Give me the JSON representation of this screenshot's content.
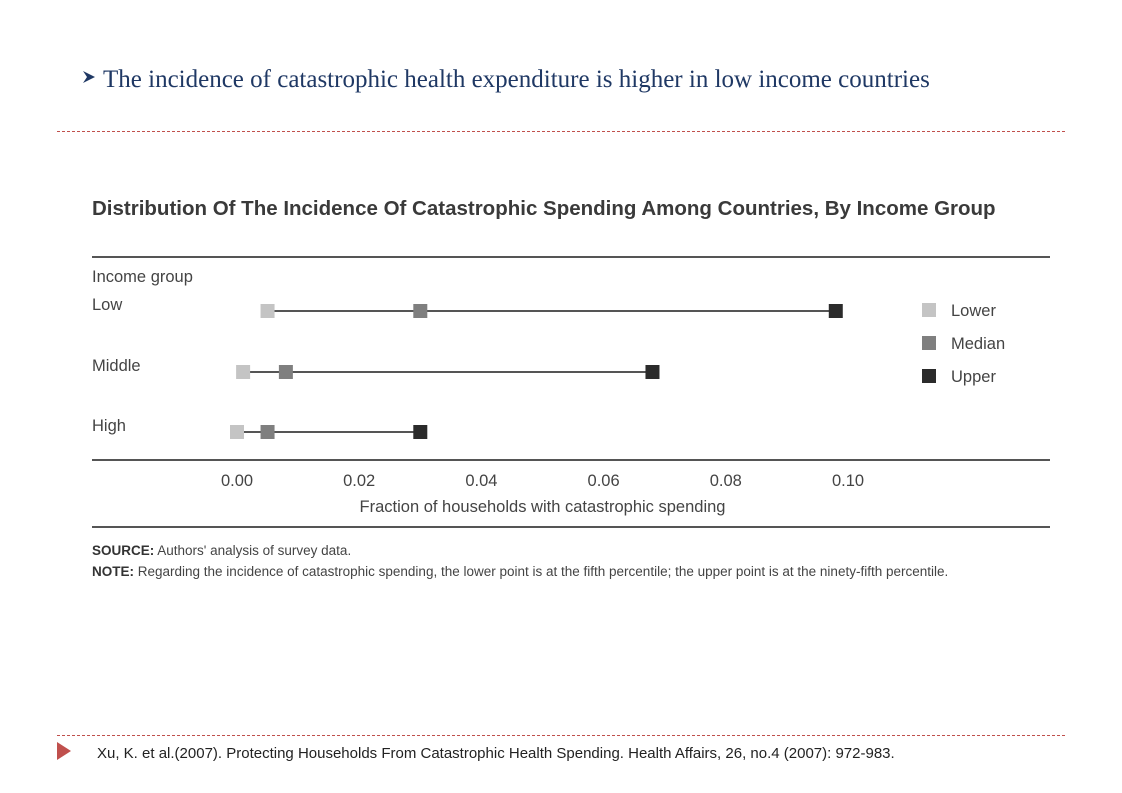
{
  "slide": {
    "heading": "The incidence of catastrophic health expenditure is higher in low income countries",
    "reference": "Xu, K. et al.(2007).  Protecting Households From Catastrophic Health Spending. Health Affairs, 26, no.4 (2007): 972-983.",
    "accent_color": "#c0504d",
    "heading_color": "#1f3864"
  },
  "figure": {
    "source_label": "SOURCE:",
    "source_text": " Authors' analysis of survey data.",
    "note_label": "NOTE:",
    "note_text": " Regarding the incidence of catastrophic spending, the lower point is at the fifth percentile; the upper point is at the ninety-fifth percentile."
  },
  "chart_data": {
    "type": "scatter",
    "title": "Distribution Of The Incidence Of Catastrophic Spending Among Countries, By Income Group",
    "ylabel": "Income group",
    "xlabel": "Fraction of households with catastrophic spending",
    "xlim": [
      0,
      0.1
    ],
    "x_ticks": [
      "0.00",
      "0.02",
      "0.04",
      "0.06",
      "0.08",
      "0.10"
    ],
    "categories": [
      "Low",
      "Middle",
      "High"
    ],
    "series": [
      {
        "name": "Lower",
        "color": "#c4c4c4",
        "values": [
          0.005,
          0.001,
          0.0
        ]
      },
      {
        "name": "Median",
        "color": "#7f7f7f",
        "values": [
          0.03,
          0.008,
          0.005
        ]
      },
      {
        "name": "Upper",
        "color": "#2b2b2b",
        "values": [
          0.098,
          0.068,
          0.03
        ]
      }
    ],
    "legend_position": "right",
    "grid": false
  }
}
